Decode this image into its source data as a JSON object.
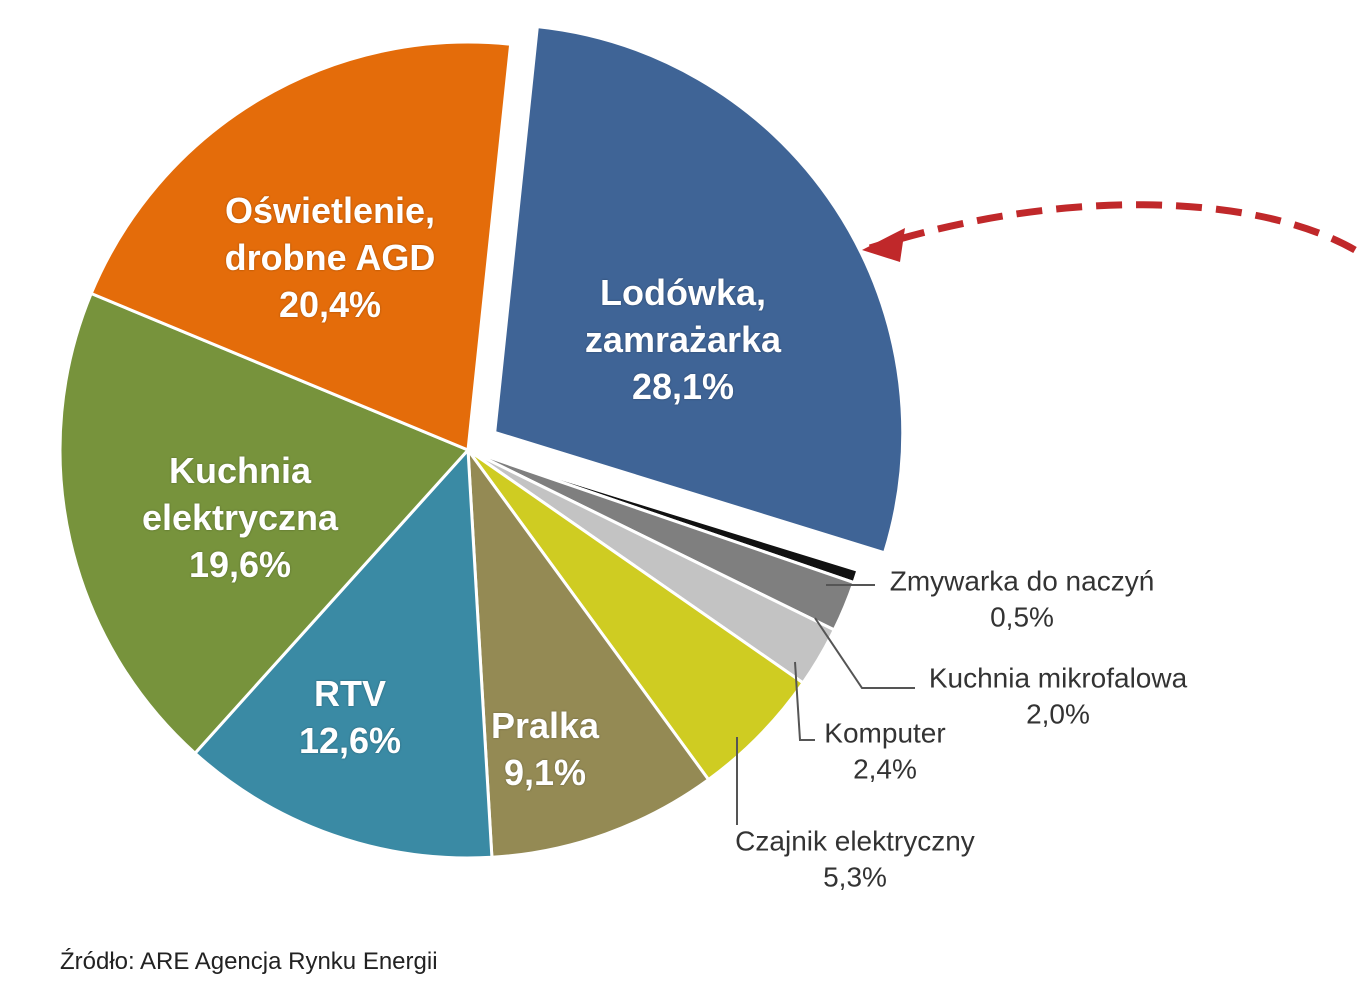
{
  "chart_data": {
    "type": "pie",
    "categories": [
      "Lodówka, zamrażarka",
      "Zmywarka do naczyń",
      "Kuchnia mikrofalowa",
      "Komputer",
      "Czajnik elektryczny",
      "Pralka",
      "RTV",
      "Kuchnia elektryczna",
      "Oświetlenie, drobne AGD"
    ],
    "values": [
      28.1,
      0.5,
      2.0,
      2.4,
      5.3,
      9.1,
      12.6,
      19.6,
      20.4
    ],
    "value_labels": [
      "28,1%",
      "0,5%",
      "2,0%",
      "2,4%",
      "5,3%",
      "9,1%",
      "12,6%",
      "19,6%",
      "20,4%"
    ],
    "colors": [
      "#3f6496",
      "#111111",
      "#7f7f7f",
      "#c3c3c3",
      "#cfcc22",
      "#948a54",
      "#3a8aa4",
      "#77933c",
      "#e46c0a"
    ],
    "exploded": [
      true,
      false,
      false,
      false,
      false,
      false,
      false,
      false,
      false
    ],
    "source": "Źródło: ARE Agencja Rynku Energii"
  }
}
